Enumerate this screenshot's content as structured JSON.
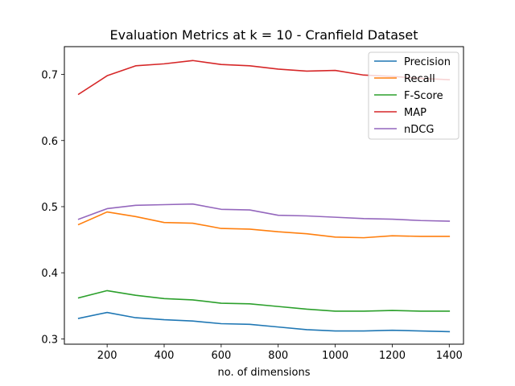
{
  "chart_data": {
    "type": "line",
    "title": "Evaluation Metrics at k = 10 - Cranfield Dataset",
    "xlabel": "no. of dimensions",
    "ylabel": "",
    "x": [
      100,
      200,
      300,
      400,
      500,
      600,
      700,
      800,
      900,
      1000,
      1100,
      1200,
      1300,
      1400
    ],
    "xlim": [
      50,
      1450
    ],
    "ylim": [
      0.292,
      0.742
    ],
    "xticks": [
      200,
      400,
      600,
      800,
      1000,
      1200,
      1400
    ],
    "yticks": [
      0.3,
      0.4,
      0.5,
      0.6,
      0.7
    ],
    "xtick_labels": [
      "200",
      "400",
      "600",
      "800",
      "1000",
      "1200",
      "1400"
    ],
    "ytick_labels": [
      "0.3",
      "0.4",
      "0.5",
      "0.6",
      "0.7"
    ],
    "grid": false,
    "legend_position": "top-right",
    "series": [
      {
        "name": "Precision",
        "color": "#1f77b4",
        "values": [
          0.331,
          0.34,
          0.332,
          0.329,
          0.327,
          0.323,
          0.322,
          0.318,
          0.314,
          0.312,
          0.312,
          0.313,
          0.312,
          0.311
        ]
      },
      {
        "name": "Recall",
        "color": "#ff7f0e",
        "values": [
          0.473,
          0.492,
          0.485,
          0.476,
          0.475,
          0.467,
          0.466,
          0.462,
          0.459,
          0.454,
          0.453,
          0.456,
          0.455,
          0.455
        ]
      },
      {
        "name": "F-Score",
        "color": "#2ca02c",
        "values": [
          0.362,
          0.373,
          0.366,
          0.361,
          0.359,
          0.354,
          0.353,
          0.349,
          0.345,
          0.342,
          0.342,
          0.343,
          0.342,
          0.342
        ]
      },
      {
        "name": "MAP",
        "color": "#d62728",
        "values": [
          0.67,
          0.698,
          0.713,
          0.716,
          0.721,
          0.715,
          0.713,
          0.708,
          0.705,
          0.706,
          0.699,
          0.697,
          0.694,
          0.692
        ]
      },
      {
        "name": "nDCG",
        "color": "#9467bd",
        "values": [
          0.481,
          0.497,
          0.502,
          0.503,
          0.504,
          0.496,
          0.495,
          0.487,
          0.486,
          0.484,
          0.482,
          0.481,
          0.479,
          0.478
        ]
      }
    ]
  }
}
